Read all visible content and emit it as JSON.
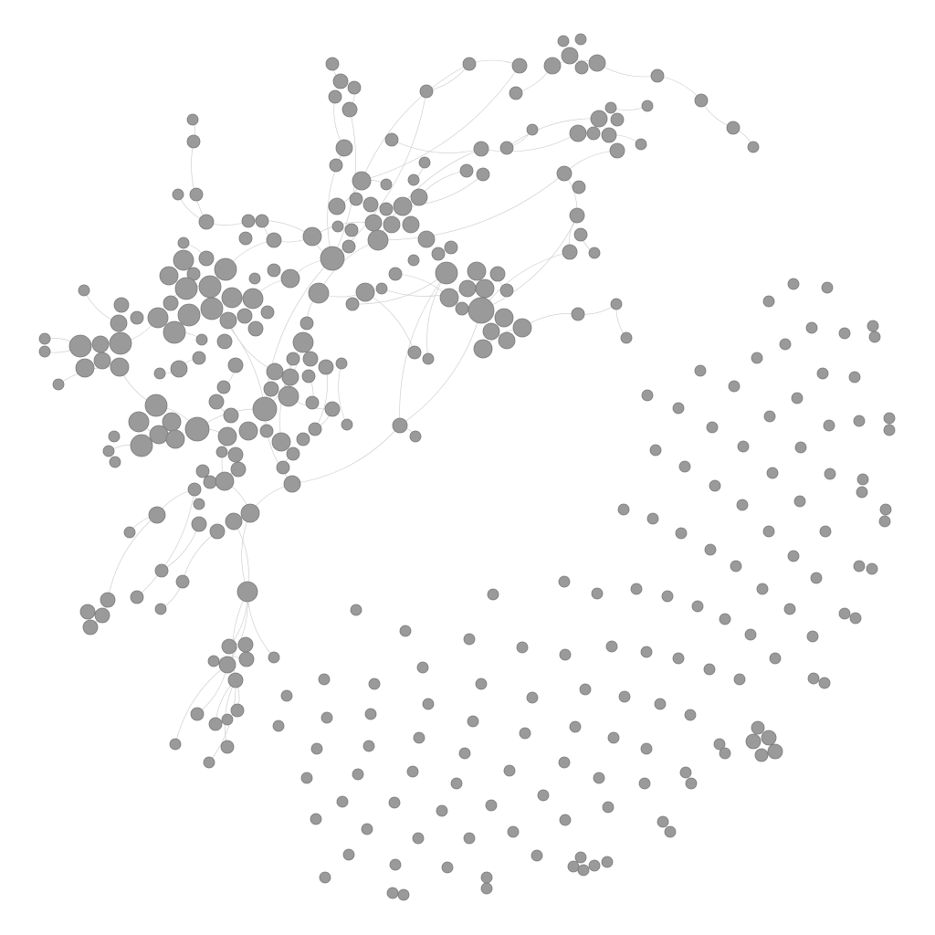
{
  "colors": {
    "background": "#ffffff",
    "node_fill": "#9a9a9a",
    "node_stroke": "#7a7a7a",
    "edge_stroke": "#c8c8c8"
  }
}
